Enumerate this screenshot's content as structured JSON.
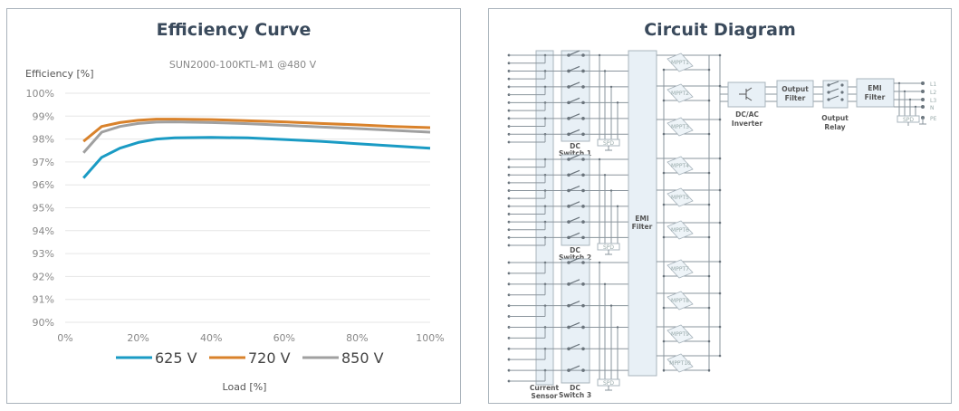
{
  "chart_data": {
    "type": "line",
    "title": "Efficiency Curve",
    "subtitle": "SUN2000-100KTL-M1 @480 V",
    "xlabel": "Load [%]",
    "ylabel": "Efficiency [%]",
    "xlim": [
      0,
      100
    ],
    "ylim": [
      90,
      100
    ],
    "x_ticks": [
      "0%",
      "20%",
      "40%",
      "60%",
      "80%",
      "100%"
    ],
    "y_ticks": [
      "100%",
      "99%",
      "98%",
      "97%",
      "96%",
      "95%",
      "94%",
      "93%",
      "92%",
      "91%",
      "90%"
    ],
    "grid": "horizontal",
    "legend_position": "bottom",
    "x": [
      5,
      10,
      15,
      20,
      25,
      30,
      40,
      50,
      60,
      70,
      80,
      90,
      100
    ],
    "series": [
      {
        "name": "625 V",
        "color": "#1a9bc4",
        "values": [
          96.3,
          97.2,
          97.6,
          97.85,
          98.0,
          98.05,
          98.07,
          98.05,
          97.98,
          97.9,
          97.8,
          97.7,
          97.6
        ]
      },
      {
        "name": "720 V",
        "color": "#d9822b",
        "values": [
          97.9,
          98.55,
          98.72,
          98.82,
          98.87,
          98.87,
          98.85,
          98.8,
          98.75,
          98.68,
          98.62,
          98.55,
          98.5
        ]
      },
      {
        "name": "850 V",
        "color": "#a0a0a0",
        "values": [
          97.4,
          98.3,
          98.55,
          98.68,
          98.74,
          98.75,
          98.72,
          98.67,
          98.6,
          98.53,
          98.46,
          98.38,
          98.3
        ]
      }
    ]
  },
  "diagram": {
    "title": "Circuit Diagram",
    "current_sensor": [
      "Current",
      "Sensor"
    ],
    "dc_switches": [
      [
        "DC",
        "Switch 1"
      ],
      [
        "DC",
        "Switch 2"
      ],
      [
        "DC",
        "Switch 3"
      ]
    ],
    "spd": "SPD",
    "emi_filter_dc": [
      "EMI",
      "Filter"
    ],
    "mppts": [
      "MPPT1",
      "MPPT2",
      "MPPT3",
      "MPPT4",
      "MPPT5",
      "MPPT6",
      "MPPT7",
      "MPPT8",
      "MPPT9",
      "MPPT10"
    ],
    "inverter": [
      "DC/AC",
      "Inverter"
    ],
    "output_filter": [
      "Output",
      "Filter"
    ],
    "output_relay": [
      "Output",
      "Relay"
    ],
    "emi_filter_ac": [
      "EMI",
      "Filter"
    ],
    "outputs": [
      "L1",
      "L2",
      "L3",
      "N",
      "PE"
    ]
  }
}
